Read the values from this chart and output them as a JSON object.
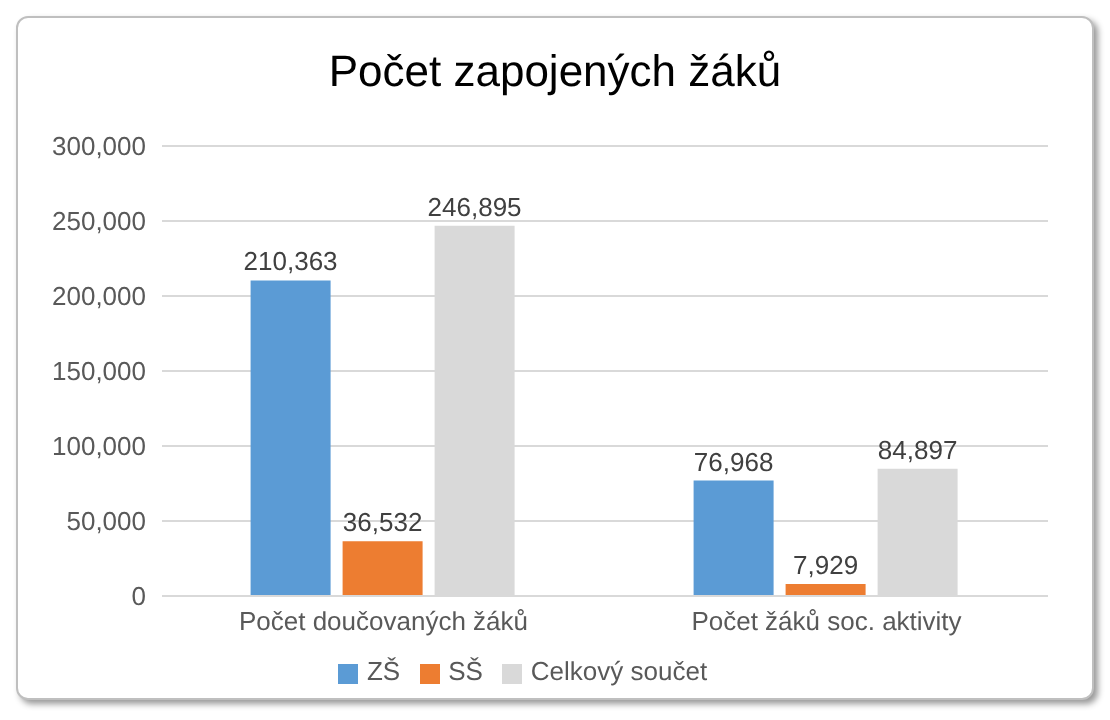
{
  "chart_data": {
    "type": "bar",
    "title": "Počet zapojených žáků",
    "categories": [
      "Počet doučovaných žáků",
      "Počet žáků soc. aktivity"
    ],
    "series": [
      {
        "name": "ZŠ",
        "color": "#5b9bd5",
        "values": [
          210363,
          76968
        ],
        "value_labels": [
          "210,363",
          "76,968"
        ]
      },
      {
        "name": "SŠ",
        "color": "#ed7d31",
        "values": [
          36532,
          7929
        ],
        "value_labels": [
          "36,532",
          "7,929"
        ]
      },
      {
        "name": "Celkový součet",
        "color": "#d9d9d9",
        "values": [
          246895,
          84897
        ],
        "value_labels": [
          "246,895",
          "84,897"
        ]
      }
    ],
    "ylim": [
      0,
      300000
    ],
    "yticks": [
      0,
      {
        "value": 50000,
        "label": "50,000"
      },
      {
        "value": 100000,
        "label": "100,000"
      },
      {
        "value": 150000,
        "label": "150,000"
      },
      {
        "value": 200000,
        "label": "200,000"
      },
      {
        "value": 250000,
        "label": "250,000"
      },
      {
        "value": 300000,
        "label": "300,000"
      }
    ],
    "grid": "y",
    "legend": "bottom"
  }
}
